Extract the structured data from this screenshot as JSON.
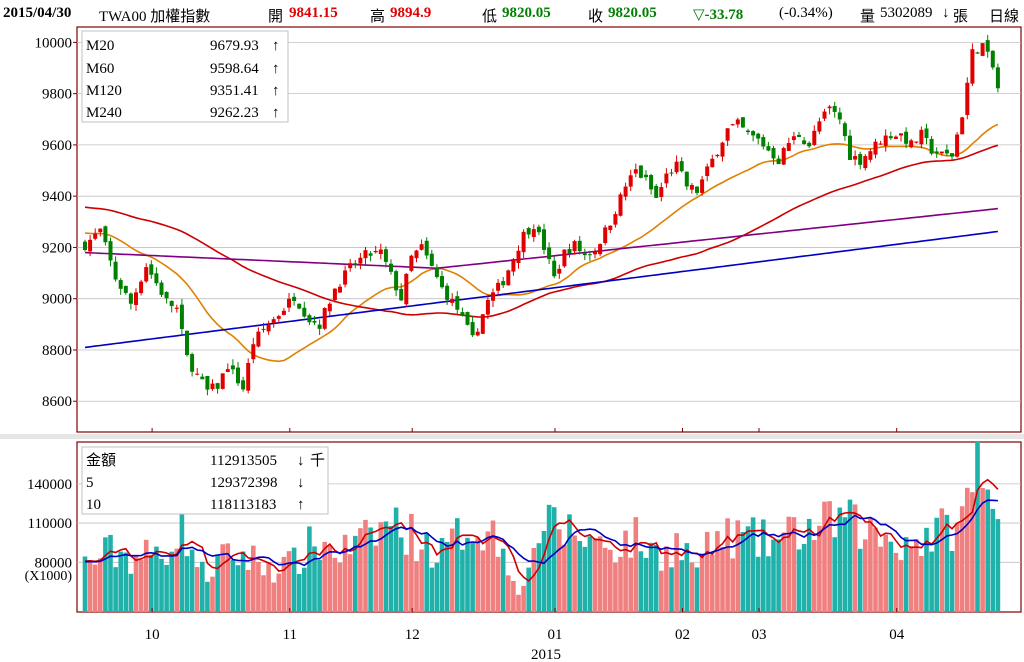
{
  "header": {
    "date": "2015/04/30",
    "symbol": "TWA00 加權指數",
    "open_label": "開",
    "open_value": "9841.15",
    "high_label": "高",
    "high_value": "9894.9",
    "low_label": "低",
    "low_value": "9820.05",
    "close_label": "收",
    "close_value": "9820.05",
    "change": "▽-33.78",
    "change_pct": "(-0.34%)",
    "volume_label": "量",
    "volume_value": "5302089",
    "volume_arrow": "↓",
    "volume_unit": "張",
    "period": "日線"
  },
  "price_legend": [
    {
      "name": "M20",
      "value": "9679.93",
      "arrow": "↑",
      "color": "#e08000"
    },
    {
      "name": "M60",
      "value": "9598.64",
      "arrow": "↑",
      "color": "#cc0000"
    },
    {
      "name": "M120",
      "value": "9351.41",
      "arrow": "↑",
      "color": "#800080"
    },
    {
      "name": "M240",
      "value": "9262.23",
      "arrow": "↑",
      "color": "#0000c0"
    }
  ],
  "volume_legend": [
    {
      "name": "金額",
      "value": "112913505",
      "arrow": "↓",
      "unit": "千",
      "color": "#000000"
    },
    {
      "name": "5",
      "value": "129372398",
      "arrow": "↓",
      "unit": "",
      "color": "#cc0000"
    },
    {
      "name": "10",
      "value": "118113183",
      "arrow": "↑",
      "unit": "",
      "color": "#0000c0"
    }
  ],
  "volume_unit_label": "(X1000)",
  "year_label": "2015",
  "colors": {
    "up": "#e00000",
    "down": "#008000",
    "vol_up": "#f08080",
    "vol_down": "#20b2aa",
    "frame": "#800000",
    "grid": "#c0c0c0"
  },
  "chart_data": {
    "type": "candlestick",
    "price_axis": {
      "ylim": [
        8480,
        10060
      ],
      "ticks": [
        10000,
        9800,
        9600,
        9400,
        9200,
        9000,
        8800,
        8600
      ]
    },
    "volume_axis": {
      "ylim": [
        42000,
        172000
      ],
      "ticks": [
        140000,
        110000,
        80000
      ]
    },
    "month_labels": [
      "10",
      "11",
      "12",
      "01",
      "02",
      "03",
      "04"
    ],
    "keypoints": [
      [
        0,
        9210
      ],
      [
        3,
        9265
      ],
      [
        6,
        9080
      ],
      [
        9,
        8980
      ],
      [
        12,
        9130
      ],
      [
        16,
        8990
      ],
      [
        18,
        8960
      ],
      [
        20,
        8770
      ],
      [
        22,
        8700
      ],
      [
        24,
        8640
      ],
      [
        26,
        8660
      ],
      [
        28,
        8740
      ],
      [
        31,
        8650
      ],
      [
        33,
        8830
      ],
      [
        35,
        8880
      ],
      [
        38,
        8940
      ],
      [
        41,
        9010
      ],
      [
        44,
        8920
      ],
      [
        46,
        8900
      ],
      [
        49,
        9040
      ],
      [
        52,
        9120
      ],
      [
        55,
        9170
      ],
      [
        58,
        9180
      ],
      [
        60,
        9090
      ],
      [
        62,
        9000
      ],
      [
        64,
        9160
      ],
      [
        66,
        9200
      ],
      [
        68,
        9120
      ],
      [
        70,
        9040
      ],
      [
        73,
        8960
      ],
      [
        76,
        8840
      ],
      [
        79,
        8990
      ],
      [
        82,
        9070
      ],
      [
        84,
        9160
      ],
      [
        86,
        9250
      ],
      [
        88,
        9290
      ],
      [
        90,
        9200
      ],
      [
        92,
        9080
      ],
      [
        94,
        9180
      ],
      [
        96,
        9210
      ],
      [
        98,
        9170
      ],
      [
        100,
        9190
      ],
      [
        103,
        9300
      ],
      [
        106,
        9440
      ],
      [
        108,
        9500
      ],
      [
        110,
        9460
      ],
      [
        112,
        9390
      ],
      [
        114,
        9480
      ],
      [
        116,
        9520
      ],
      [
        118,
        9440
      ],
      [
        120,
        9420
      ],
      [
        122,
        9500
      ],
      [
        124,
        9580
      ],
      [
        126,
        9660
      ],
      [
        128,
        9680
      ],
      [
        130,
        9640
      ],
      [
        132,
        9620
      ],
      [
        134,
        9580
      ],
      [
        136,
        9540
      ],
      [
        138,
        9610
      ],
      [
        140,
        9640
      ],
      [
        142,
        9600
      ],
      [
        144,
        9690
      ],
      [
        146,
        9740
      ],
      [
        148,
        9700
      ],
      [
        150,
        9560
      ],
      [
        152,
        9540
      ],
      [
        154,
        9580
      ],
      [
        156,
        9620
      ],
      [
        158,
        9640
      ],
      [
        160,
        9640
      ],
      [
        162,
        9600
      ],
      [
        164,
        9640
      ],
      [
        166,
        9580
      ],
      [
        168,
        9560
      ],
      [
        170,
        9560
      ],
      [
        172,
        9720
      ],
      [
        174,
        9960
      ],
      [
        176,
        9990
      ],
      [
        178,
        9900
      ],
      [
        179,
        9820
      ]
    ],
    "volume_keypoints": [
      [
        0,
        78000
      ],
      [
        5,
        88000
      ],
      [
        10,
        84000
      ],
      [
        15,
        86000
      ],
      [
        19,
        110000
      ],
      [
        23,
        70000
      ],
      [
        26,
        80000
      ],
      [
        30,
        86000
      ],
      [
        35,
        79000
      ],
      [
        40,
        76000
      ],
      [
        45,
        95000
      ],
      [
        50,
        88000
      ],
      [
        55,
        96000
      ],
      [
        60,
        112000
      ],
      [
        65,
        98000
      ],
      [
        70,
        86000
      ],
      [
        75,
        108000
      ],
      [
        80,
        102000
      ],
      [
        84,
        76000
      ],
      [
        86,
        56000
      ],
      [
        88,
        100000
      ],
      [
        92,
        108000
      ],
      [
        96,
        102000
      ],
      [
        100,
        96000
      ],
      [
        104,
        93000
      ],
      [
        108,
        98000
      ],
      [
        112,
        86000
      ],
      [
        116,
        94000
      ],
      [
        120,
        78000
      ],
      [
        124,
        98000
      ],
      [
        128,
        100000
      ],
      [
        132,
        96000
      ],
      [
        136,
        96000
      ],
      [
        140,
        104000
      ],
      [
        144,
        106000
      ],
      [
        148,
        114000
      ],
      [
        152,
        106000
      ],
      [
        156,
        100000
      ],
      [
        160,
        96000
      ],
      [
        164,
        98000
      ],
      [
        168,
        104000
      ],
      [
        172,
        112000
      ],
      [
        174,
        140000
      ],
      [
        175,
        168000
      ],
      [
        176,
        128000
      ],
      [
        178,
        122000
      ],
      [
        179,
        112913
      ]
    ],
    "series": [
      {
        "name": "M20",
        "value": 9679.93
      },
      {
        "name": "M60",
        "value": 9598.64
      },
      {
        "name": "M120",
        "value": 9351.41
      },
      {
        "name": "M240",
        "value": 9262.23
      }
    ]
  }
}
